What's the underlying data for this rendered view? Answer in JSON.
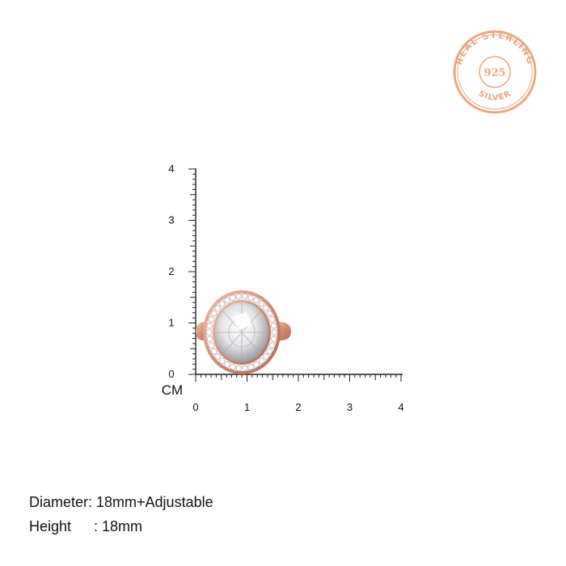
{
  "seal": {
    "ring_text": "REAL STERLING",
    "center_text": "925",
    "bottom_text": "SILVER",
    "color": "#e9a982"
  },
  "ruler": {
    "unit_label": "CM",
    "y_ticks": [
      "0",
      "1",
      "2",
      "3",
      "4"
    ],
    "x_ticks": [
      "0",
      "1",
      "2",
      "3",
      "4"
    ],
    "minor_per_unit": 10
  },
  "product": {
    "metal_color": "#d89a82",
    "stone_color": "#e8e8ea",
    "halo_color": "#f3eef0"
  },
  "specs": {
    "diameter_label": "Diameter: 18mm+Adjustable",
    "height_label": "Height",
    "height_value": ": 18mm"
  }
}
